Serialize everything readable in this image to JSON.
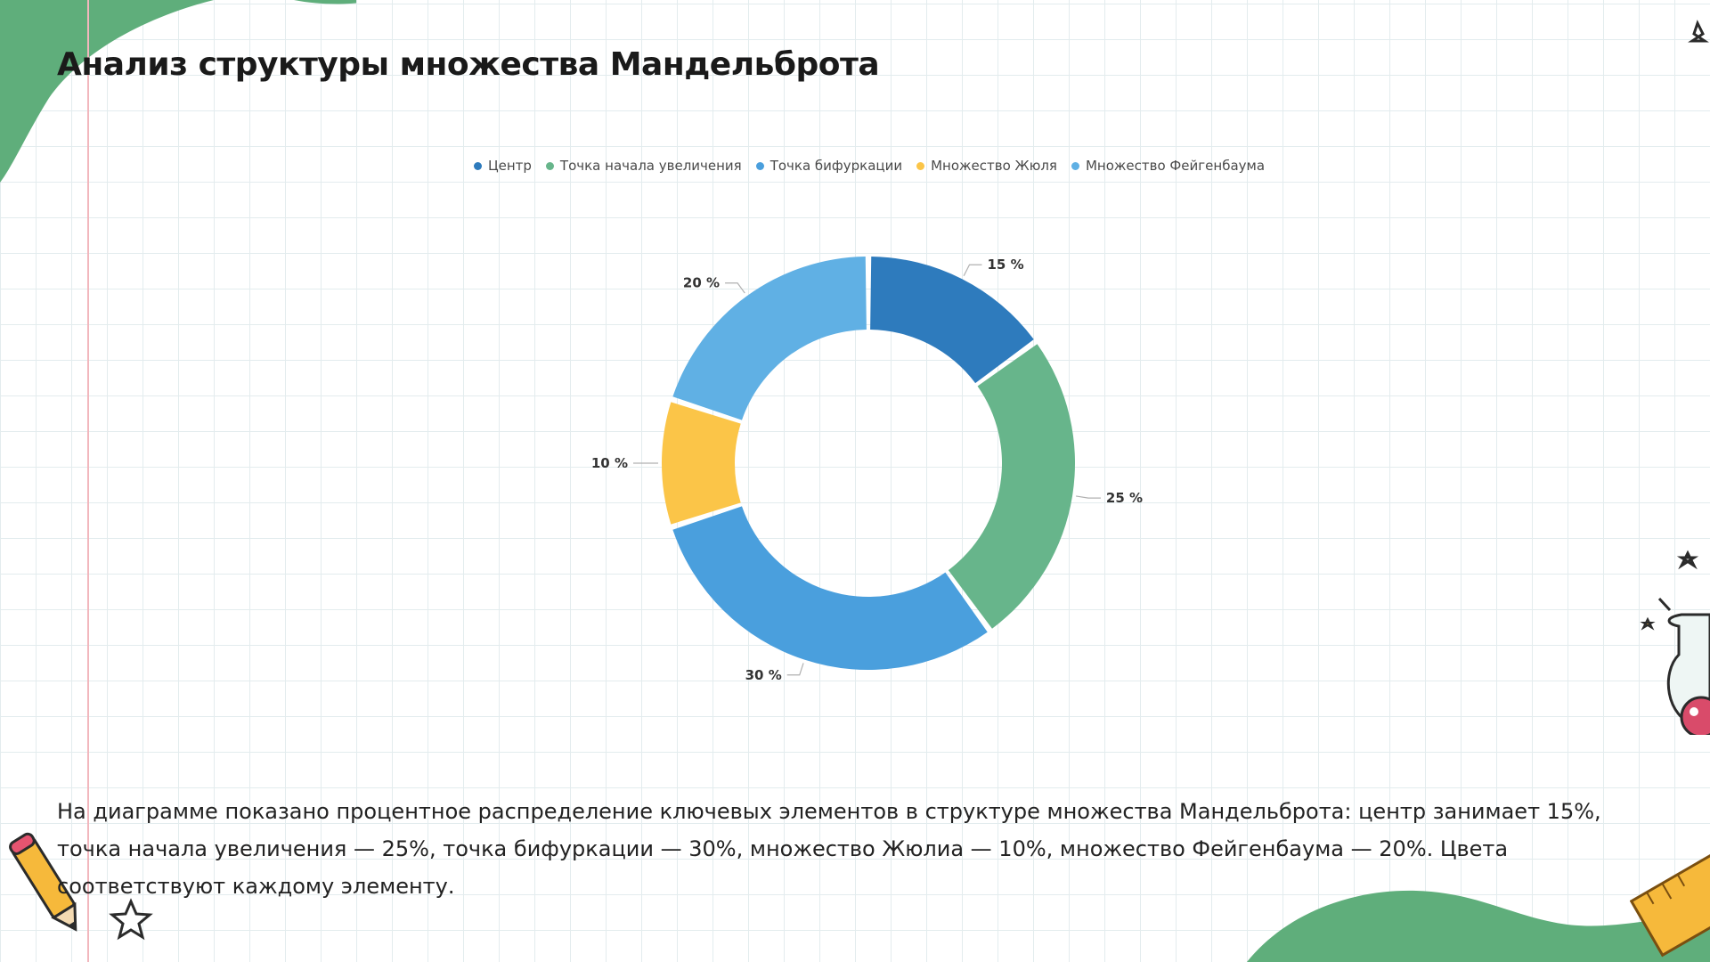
{
  "title": "Анализ структуры множества Мандельброта",
  "caption": "На диаграмме показано процентное распределение ключевых элементов в структуре множества Мандельброта: центр занимает 15%, точка начала увеличения — 25%, точка бифуркации — 30%, множество Жюлиа — 10%, множество Фейгенбаума — 20%. Цвета соответствуют каждому элементу.",
  "chart_data": {
    "type": "pie",
    "variant": "donut",
    "legend_position": "top",
    "categories": [
      "Центр",
      "Точка начала увеличения",
      "Точка бифуркации",
      "Множество Жюля",
      "Множество Фейгенбаума"
    ],
    "values": [
      15,
      25,
      30,
      10,
      20
    ],
    "labels": [
      "15 %",
      "25 %",
      "30 %",
      "10 %",
      "20 %"
    ],
    "colors": [
      "#2e7bbd",
      "#67b58b",
      "#4a9fdd",
      "#fbc548",
      "#60b0e4"
    ]
  }
}
